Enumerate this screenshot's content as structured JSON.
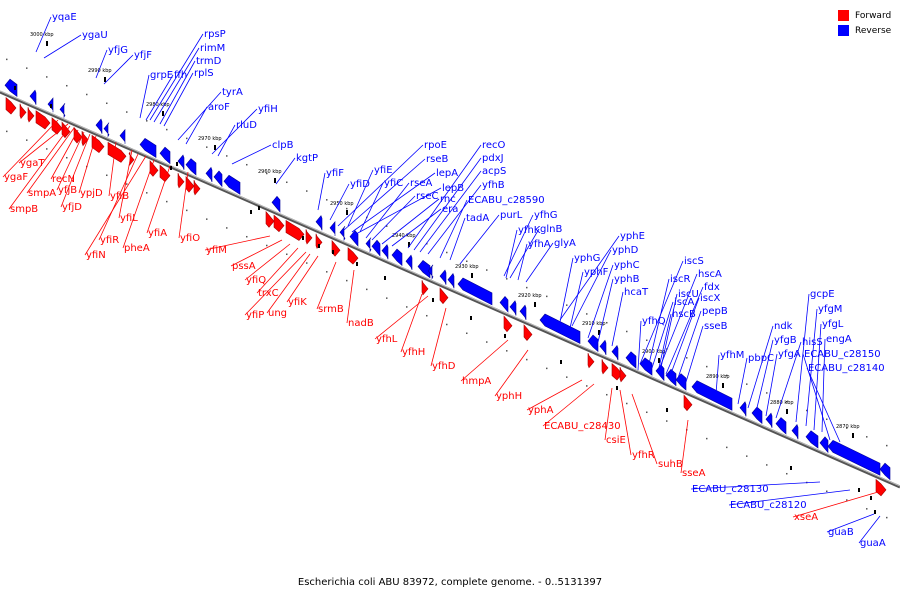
{
  "caption": "Escherichia coli ABU 83972, complete genome. - 0..5131397",
  "legend": [
    {
      "label": "Forward",
      "color": "#ff0000"
    },
    {
      "label": "Reverse",
      "color": "#0000ff"
    }
  ],
  "colors": {
    "forward": "#ff0000",
    "reverse": "#0000ff",
    "axis": "#777777"
  },
  "ticks": [
    "3000 kbp",
    "2990 kbp",
    "2980 kbp",
    "2970 kbp",
    "2960 kbp",
    "2950 kbp",
    "2940 kbp",
    "2930 kbp",
    "2920 kbp",
    "2910 kbp",
    "2900 kbp",
    "2890 kbp",
    "2880 kbp",
    "2870 kbp"
  ],
  "reverse_genes": [
    "yqaE",
    "ygaU",
    "yfjG",
    "yfjF",
    "rpsP",
    "rimM",
    "trmD",
    "rplS",
    "grpE",
    "ffh",
    "tyrA",
    "aroF",
    "yfiH",
    "rluD",
    "clpB",
    "kgtP",
    "rpoE",
    "rseB",
    "lepA",
    "lepB",
    "rseA",
    "rseC",
    "rnc",
    "era",
    "recO",
    "pdxJ",
    "acpS",
    "yfhB",
    "ECABU_c28590",
    "tadA",
    "purL",
    "yfhG",
    "yfhK",
    "glnB",
    "yfhA",
    "glyA",
    "yfiF",
    "yfiD",
    "yfiE",
    "yfiC",
    "yphE",
    "yphD",
    "yphG",
    "yphF",
    "yphC",
    "yphB",
    "hcaT",
    "iscS",
    "iscR",
    "hscA",
    "fdx",
    "iscU",
    "iscX",
    "iscA",
    "pepB",
    "hscB",
    "sseB",
    "yfhQ",
    "yfhM",
    "ndk",
    "pbpC",
    "yfgB",
    "yfgA",
    "hisS",
    "gcpE",
    "yfgM",
    "yfgL",
    "engA",
    "ECABU_c28150",
    "ECABU_c28140",
    "ECABU_c28130",
    "ECABU_c28120",
    "guaB",
    "guaA"
  ],
  "forward_genes": [
    "ygaT",
    "ygaF",
    "smpB",
    "smpA",
    "recN",
    "yfjB",
    "yfjD",
    "ypjD",
    "yfiB",
    "yfiL",
    "yfiR",
    "yfiN",
    "pheA",
    "yfiA",
    "yfiO",
    "yfiM",
    "pssA",
    "yfiQ",
    "trxC",
    "yfiP",
    "ung",
    "yfiK",
    "srmB",
    "nadB",
    "yfhL",
    "yfhH",
    "yfhD",
    "hmpA",
    "yphH",
    "yphA",
    "ECABU_c28430",
    "csiE",
    "yfhR",
    "suhB",
    "sseA",
    "xseA"
  ]
}
